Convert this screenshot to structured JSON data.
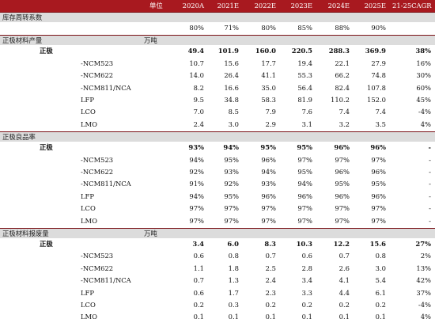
{
  "header": {
    "unit_label": "单位",
    "years": [
      "2020A",
      "2021E",
      "2022E",
      "2023E",
      "2024E",
      "2025E"
    ],
    "cagr_label": "21-25CAGR"
  },
  "sections": [
    {
      "title": "库存周转系数",
      "unit": "",
      "rows": [
        {
          "label": "",
          "indent": false,
          "bold": false,
          "values": [
            "80%",
            "71%",
            "80%",
            "85%",
            "88%",
            "90%"
          ],
          "cagr": ""
        }
      ]
    },
    {
      "title": "正极材料产量",
      "unit": "万吨",
      "rows": [
        {
          "label": "正极",
          "indent": false,
          "bold": true,
          "values": [
            "49.4",
            "101.9",
            "160.0",
            "220.5",
            "288.3",
            "369.9"
          ],
          "cagr": "38%"
        },
        {
          "label": "-NCM523",
          "indent": true,
          "bold": false,
          "values": [
            "10.7",
            "15.6",
            "17.7",
            "19.4",
            "22.1",
            "27.9"
          ],
          "cagr": "16%"
        },
        {
          "label": "-NCM622",
          "indent": true,
          "bold": false,
          "values": [
            "14.0",
            "26.4",
            "41.1",
            "55.3",
            "66.2",
            "74.8"
          ],
          "cagr": "30%"
        },
        {
          "label": "-NCM811/NCA",
          "indent": true,
          "bold": false,
          "values": [
            "8.2",
            "16.6",
            "35.0",
            "56.4",
            "82.4",
            "107.8"
          ],
          "cagr": "60%"
        },
        {
          "label": "LFP",
          "indent": true,
          "bold": false,
          "values": [
            "9.5",
            "34.8",
            "58.3",
            "81.9",
            "110.2",
            "152.0"
          ],
          "cagr": "45%"
        },
        {
          "label": "LCO",
          "indent": true,
          "bold": false,
          "values": [
            "7.0",
            "8.5",
            "7.9",
            "7.6",
            "7.4",
            "7.4"
          ],
          "cagr": "-4%"
        },
        {
          "label": "LMO",
          "indent": true,
          "bold": false,
          "values": [
            "2.4",
            "3.0",
            "2.9",
            "3.1",
            "3.2",
            "3.5"
          ],
          "cagr": "4%"
        }
      ]
    },
    {
      "title": "正极良品率",
      "unit": "",
      "rows": [
        {
          "label": "正极",
          "indent": false,
          "bold": true,
          "values": [
            "93%",
            "94%",
            "95%",
            "95%",
            "96%",
            "96%"
          ],
          "cagr": "-"
        },
        {
          "label": "-NCM523",
          "indent": true,
          "bold": false,
          "values": [
            "94%",
            "95%",
            "96%",
            "97%",
            "97%",
            "97%"
          ],
          "cagr": "-"
        },
        {
          "label": "-NCM622",
          "indent": true,
          "bold": false,
          "values": [
            "92%",
            "93%",
            "94%",
            "95%",
            "96%",
            "96%"
          ],
          "cagr": "-"
        },
        {
          "label": "-NCM811/NCA",
          "indent": true,
          "bold": false,
          "values": [
            "91%",
            "92%",
            "93%",
            "94%",
            "95%",
            "95%"
          ],
          "cagr": "-"
        },
        {
          "label": "LFP",
          "indent": true,
          "bold": false,
          "values": [
            "94%",
            "95%",
            "96%",
            "96%",
            "96%",
            "96%"
          ],
          "cagr": "-"
        },
        {
          "label": "LCO",
          "indent": true,
          "bold": false,
          "values": [
            "97%",
            "97%",
            "97%",
            "97%",
            "97%",
            "97%"
          ],
          "cagr": "-"
        },
        {
          "label": "LMO",
          "indent": true,
          "bold": false,
          "values": [
            "97%",
            "97%",
            "97%",
            "97%",
            "97%",
            "97%"
          ],
          "cagr": "-"
        }
      ]
    },
    {
      "title": "正极材料报废量",
      "unit": "万吨",
      "rows": [
        {
          "label": "正极",
          "indent": false,
          "bold": true,
          "values": [
            "3.4",
            "6.0",
            "8.3",
            "10.3",
            "12.2",
            "15.6"
          ],
          "cagr": "27%"
        },
        {
          "label": "-NCM523",
          "indent": true,
          "bold": false,
          "values": [
            "0.6",
            "0.8",
            "0.7",
            "0.6",
            "0.7",
            "0.8"
          ],
          "cagr": "2%"
        },
        {
          "label": "-NCM622",
          "indent": true,
          "bold": false,
          "values": [
            "1.1",
            "1.8",
            "2.5",
            "2.8",
            "2.6",
            "3.0"
          ],
          "cagr": "13%"
        },
        {
          "label": "-NCM811/NCA",
          "indent": true,
          "bold": false,
          "values": [
            "0.7",
            "1.3",
            "2.4",
            "3.4",
            "4.1",
            "5.4"
          ],
          "cagr": "42%"
        },
        {
          "label": "LFP",
          "indent": true,
          "bold": false,
          "values": [
            "0.6",
            "1.7",
            "2.3",
            "3.3",
            "4.4",
            "6.1"
          ],
          "cagr": "37%"
        },
        {
          "label": "LCO",
          "indent": true,
          "bold": false,
          "values": [
            "0.2",
            "0.3",
            "0.2",
            "0.2",
            "0.2",
            "0.2"
          ],
          "cagr": "-4%"
        },
        {
          "label": "LMO",
          "indent": true,
          "bold": false,
          "values": [
            "0.1",
            "0.1",
            "0.1",
            "0.1",
            "0.1",
            "0.1"
          ],
          "cagr": "4%"
        }
      ]
    }
  ]
}
